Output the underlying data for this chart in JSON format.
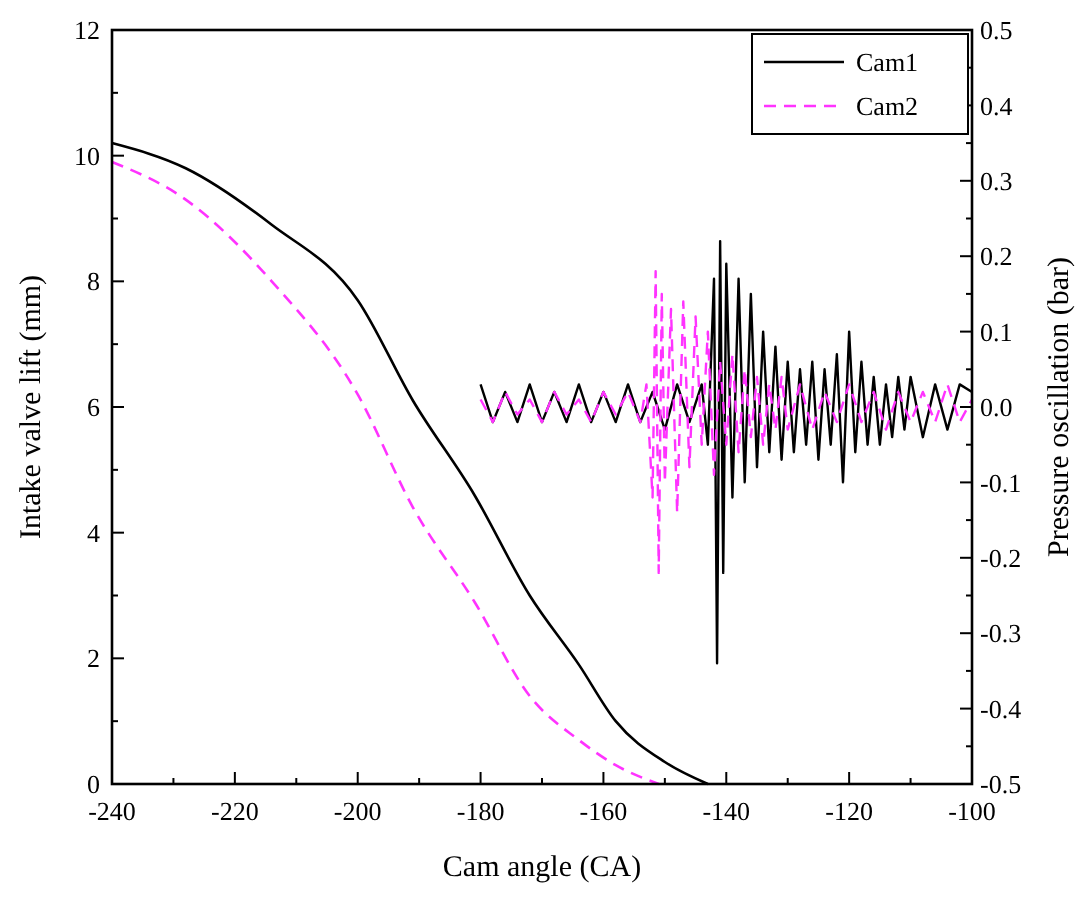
{
  "chart_data": {
    "type": "line",
    "xlabel": "Cam angle (CA)",
    "ylabel": "Intake valve lift (mm)",
    "y2label": "Pressure oscillation (bar)",
    "xlim": [
      -240,
      -100
    ],
    "xticks": [
      -240,
      -220,
      -200,
      -180,
      -160,
      -140,
      -120,
      -100
    ],
    "ylim": [
      0,
      12
    ],
    "yticks": [
      0,
      2,
      4,
      6,
      8,
      10,
      12
    ],
    "y2lim": [
      -0.5,
      0.5
    ],
    "y2ticks": [
      -0.5,
      {
        "value": -0.4,
        "label": "-0.4"
      },
      {
        "value": -0.3,
        "label": "-0.3"
      },
      {
        "value": -0.2,
        "label": "-0.2"
      },
      {
        "value": -0.1,
        "label": "-0.1"
      },
      {
        "value": 0,
        "label": "0.0"
      },
      0.1,
      0.2,
      0.3,
      0.4,
      0.5
    ],
    "legend": "top right",
    "grid": false,
    "series": [
      {
        "name": "Cam1",
        "color": "#000000",
        "line_style": "solid",
        "x": [
          -240,
          -228,
          -214,
          -200,
          -191,
          -181,
          -172,
          -164,
          -158,
          -150,
          -143
        ],
        "values": [
          10.2,
          9.8,
          8.9,
          7.7,
          6.1,
          4.6,
          3.0,
          1.9,
          1.0,
          0.35,
          0
        ]
      },
      {
        "name": "Cam2",
        "color": "#ff33ff",
        "line_style": "dashed",
        "x": [
          -240,
          -228,
          -214,
          -200,
          -191,
          -181,
          -172,
          -164,
          -158,
          -151
        ],
        "values": [
          9.9,
          9.3,
          8.0,
          6.2,
          4.4,
          2.9,
          1.4,
          0.7,
          0.3,
          0
        ]
      },
      {
        "color": "#000000",
        "line_style": "solid",
        "axis": "y2",
        "x": [
          -180,
          -178,
          -176,
          -174,
          -172,
          -170,
          -168,
          -166,
          -164,
          -162,
          -160,
          -158,
          -156,
          -154,
          -152,
          -150,
          -148,
          -146,
          -144,
          -143,
          -142,
          -141.5,
          -141,
          -140.5,
          -140,
          -139,
          -138,
          -137,
          -136,
          -135,
          -134,
          -133,
          -132,
          -131,
          -130,
          -129,
          -128,
          -127,
          -126,
          -125,
          -124,
          -123,
          -122,
          -121,
          -120,
          -119,
          -118,
          -117,
          -116,
          -115,
          -114,
          -113,
          -112,
          -111,
          -110,
          -108,
          -106,
          -104,
          -102,
          -100
        ],
        "values": [
          0.03,
          -0.02,
          0.02,
          -0.02,
          0.03,
          -0.02,
          0.02,
          -0.02,
          0.03,
          -0.02,
          0.02,
          -0.02,
          0.03,
          -0.02,
          0.02,
          -0.03,
          0.03,
          -0.02,
          0.03,
          -0.05,
          0.17,
          -0.34,
          0.22,
          -0.22,
          0.19,
          -0.12,
          0.17,
          -0.1,
          0.15,
          -0.08,
          0.1,
          -0.06,
          0.08,
          -0.07,
          0.06,
          -0.06,
          0.05,
          -0.05,
          0.06,
          -0.07,
          0.05,
          -0.05,
          0.07,
          -0.1,
          0.1,
          -0.06,
          0.06,
          -0.05,
          0.04,
          -0.05,
          0.03,
          -0.04,
          0.04,
          -0.03,
          0.04,
          -0.04,
          0.03,
          -0.03,
          0.03,
          0.02
        ]
      },
      {
        "color": "#ff33ff",
        "line_style": "dashed",
        "axis": "y2",
        "x": [
          -180,
          -178,
          -176,
          -174,
          -172,
          -170,
          -168,
          -166,
          -164,
          -162,
          -160,
          -158,
          -156,
          -154,
          -153,
          -152,
          -151.5,
          -151,
          -150.5,
          -150,
          -149,
          -148,
          -147,
          -146,
          -145,
          -144,
          -143,
          -142,
          -141,
          -140,
          -139,
          -138,
          -137,
          -136,
          -135,
          -134,
          -133,
          -132,
          -131,
          -130,
          -128,
          -126,
          -124,
          -122,
          -120,
          -118,
          -116,
          -114,
          -112,
          -110,
          -108,
          -106,
          -104,
          -102,
          -100
        ],
        "values": [
          0.01,
          -0.02,
          0.02,
          -0.01,
          0.01,
          -0.02,
          0.02,
          -0.01,
          0.01,
          -0.02,
          0.02,
          -0.01,
          0.02,
          -0.02,
          0.03,
          -0.12,
          0.18,
          -0.22,
          0.15,
          -0.1,
          0.13,
          -0.14,
          0.14,
          -0.08,
          0.12,
          -0.05,
          0.1,
          -0.09,
          0.06,
          -0.05,
          0.07,
          -0.06,
          0.05,
          -0.04,
          0.04,
          -0.05,
          0.03,
          -0.03,
          0.04,
          -0.03,
          0.03,
          -0.03,
          0.02,
          -0.02,
          0.03,
          -0.02,
          0.02,
          -0.03,
          0.02,
          -0.02,
          0.02,
          -0.02,
          0.03,
          -0.02,
          0.01
        ]
      }
    ]
  }
}
